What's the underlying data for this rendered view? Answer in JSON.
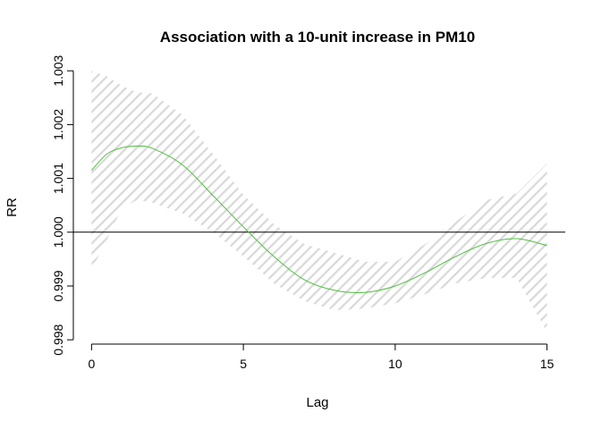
{
  "chart_data": {
    "type": "line",
    "title": "Association with a 10-unit increase in PM10",
    "xlabel": "Lag",
    "ylabel": "RR",
    "xlim": [
      -0.6,
      15.6
    ],
    "ylim": [
      0.99792,
      1.00307
    ],
    "x_ticks": [
      0,
      5,
      10,
      15
    ],
    "x_tick_labels": [
      "0",
      "5",
      "10",
      "15"
    ],
    "y_ticks": [
      0.998,
      0.999,
      1.0,
      1.001,
      1.002,
      1.003
    ],
    "y_tick_labels": [
      "0.998",
      "0.999",
      "1.000",
      "1.001",
      "1.002",
      "1.003"
    ],
    "reference_line": 1.0,
    "grid": false,
    "series": [
      {
        "type": "line",
        "color": "#4fbf3f",
        "x": [
          0,
          0.5,
          1,
          1.5,
          2,
          3,
          4,
          5,
          6,
          7,
          8,
          9,
          10,
          11,
          12,
          13,
          14,
          15
        ],
        "y": [
          1.00115,
          1.00145,
          1.00157,
          1.0016,
          1.00156,
          1.00125,
          1.00068,
          1.0001,
          0.99955,
          0.99912,
          0.99892,
          0.99888,
          0.999,
          0.99925,
          0.99955,
          0.99979,
          0.99988,
          0.99975
        ]
      }
    ],
    "confidence_band": {
      "fill_color": "#d9d9d9",
      "x": [
        0,
        0.5,
        1,
        1.5,
        2,
        3,
        4,
        5,
        6,
        7,
        8,
        9,
        10,
        11,
        12,
        13,
        14,
        15
      ],
      "lower": [
        0.9993,
        0.99985,
        1.00045,
        1.0006,
        1.00055,
        1.00035,
        1.0,
        0.99955,
        0.99905,
        0.99872,
        0.99855,
        0.99858,
        0.99868,
        0.99885,
        0.99905,
        0.99915,
        0.99915,
        0.99815
      ],
      "upper": [
        1.003,
        1.0029,
        1.00272,
        1.0026,
        1.00258,
        1.00218,
        1.00145,
        1.0007,
        1.00015,
        0.99978,
        0.99962,
        0.99945,
        0.99945,
        0.99978,
        1.0002,
        1.0006,
        1.00072,
        1.00128
      ]
    }
  }
}
